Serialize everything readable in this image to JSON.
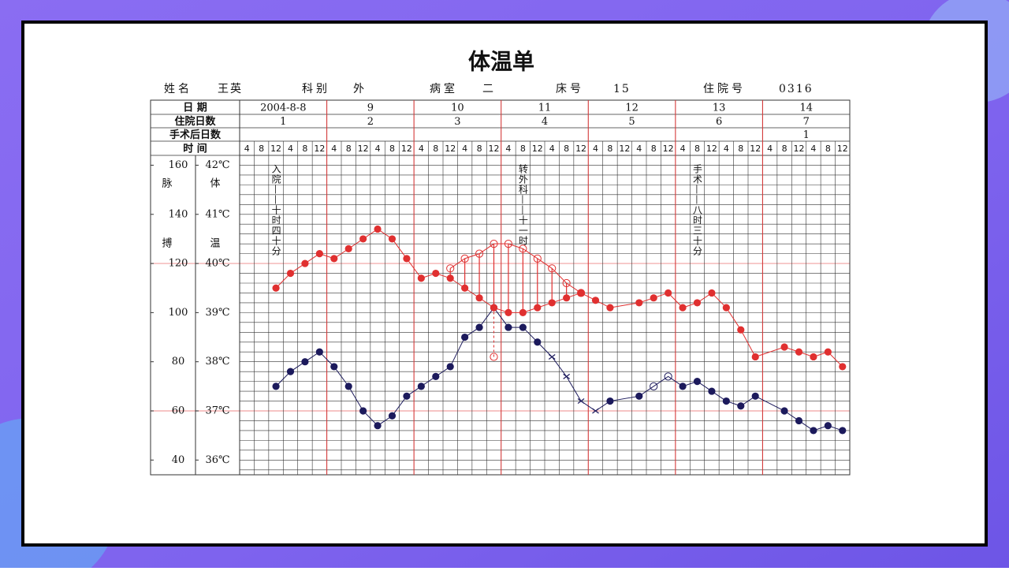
{
  "header": {
    "title": "体温单",
    "fields": [
      {
        "label": "姓名",
        "value": "王英"
      },
      {
        "label": "科别",
        "value": "外"
      },
      {
        "label": "病室",
        "value": "二"
      },
      {
        "label": "床号",
        "value": "15"
      },
      {
        "label": "住院号",
        "value": "0316"
      }
    ]
  },
  "table": {
    "row_labels": [
      "日 期",
      "住院日数",
      "手术后日数",
      "时 间"
    ],
    "dates": [
      "2004-8-8",
      "9",
      "10",
      "11",
      "12",
      "13",
      "14"
    ],
    "hospital_days": [
      1,
      2,
      3,
      4,
      5,
      6,
      7
    ],
    "postop_days": [
      null,
      null,
      null,
      null,
      null,
      null,
      1
    ],
    "times": [
      4,
      8,
      12,
      4,
      8,
      12
    ],
    "time_colors": [
      "#d42a2a",
      "#111111",
      "#111111",
      "#111111",
      "#d42a2a",
      "#d42a2a"
    ]
  },
  "chart_data": {
    "type": "line",
    "xlim": [
      -0.5,
      41.5
    ],
    "ylim": [
      35.7,
      42.2
    ],
    "yticks": [
      {
        "value": 36,
        "label": "36℃"
      },
      {
        "value": 37,
        "label": "37℃"
      },
      {
        "value": 38,
        "label": "38℃"
      },
      {
        "value": 39,
        "label": "39℃"
      },
      {
        "value": 40,
        "label": "40℃"
      },
      {
        "value": 41,
        "label": "41℃"
      },
      {
        "value": 42,
        "label": "42℃"
      }
    ],
    "y2lim": [
      34,
      164
    ],
    "y2ticks": [
      40,
      60,
      80,
      100,
      120,
      140,
      160
    ],
    "y_label": [
      "体",
      "温"
    ],
    "y2_label": [
      "脉",
      "搏"
    ],
    "minor_grid_step": 0.2,
    "highlight_lines": [
      37,
      40
    ],
    "highlight_color": "#f0a0a0",
    "series": [
      {
        "color": "#1c1a5c",
        "axis": "y",
        "x": [
          2,
          3,
          4,
          5,
          6,
          7,
          8,
          9,
          10,
          11,
          12,
          13,
          14,
          15,
          16,
          17,
          18,
          19,
          20,
          21,
          22,
          23,
          24,
          25,
          27,
          28,
          29,
          30,
          31,
          32,
          33,
          34,
          35,
          37,
          38,
          39,
          40,
          41
        ],
        "values": [
          37.5,
          37.8,
          38.0,
          38.2,
          37.9,
          37.5,
          37.0,
          36.7,
          36.9,
          37.3,
          37.5,
          37.7,
          37.9,
          38.5,
          38.7,
          39.1,
          38.7,
          38.7,
          38.4,
          38.1,
          37.7,
          37.2,
          37.0,
          37.2,
          37.3,
          37.5,
          37.7,
          37.5,
          37.6,
          37.4,
          37.2,
          37.1,
          37.3,
          37.0,
          36.8,
          36.6,
          36.7,
          36.6
        ],
        "markers": [
          "dot",
          "dot",
          "dot",
          "dot",
          "dot",
          "dot",
          "dot",
          "dot",
          "dot",
          "dot",
          "dot",
          "dot",
          "dot",
          "dot",
          "dot",
          "dot",
          "dot",
          "dot",
          "dot",
          "cross",
          "cross",
          "cross",
          "cross",
          "dot",
          "dot",
          "open",
          "open",
          "dot",
          "dot",
          "dot",
          "dot",
          "dot",
          "dot",
          "dot",
          "dot",
          "dot",
          "dot",
          "dot"
        ]
      },
      {
        "color": "#e03030",
        "axis": "y2",
        "x": [
          2,
          3,
          4,
          5,
          6,
          7,
          8,
          9,
          10,
          11,
          12,
          13,
          14,
          15,
          16,
          17,
          18,
          19,
          20,
          21,
          22,
          23,
          24,
          25,
          27,
          28,
          29,
          30,
          31,
          32,
          33,
          34,
          35,
          37,
          38,
          39,
          40,
          41
        ],
        "values": [
          110,
          116,
          120,
          124,
          122,
          126,
          130,
          134,
          130,
          122,
          114,
          116,
          114,
          110,
          106,
          102,
          100,
          100,
          102,
          104,
          106,
          108,
          105,
          102,
          104,
          106,
          108,
          102,
          104,
          108,
          102,
          93,
          82,
          86,
          84,
          82,
          84,
          78
        ],
        "marker": "dot"
      },
      {
        "color": "#e03030",
        "axis": "y2",
        "x": [
          14,
          15,
          16,
          17,
          18,
          19,
          20,
          21,
          22,
          23
        ],
        "values": [
          118,
          122,
          124,
          128,
          128,
          126,
          122,
          118,
          112,
          108
        ],
        "marker": "open",
        "deficit_with": 1
      },
      {
        "color": "#e03030",
        "axis": "y",
        "x": [
          17
        ],
        "values": [
          38.1
        ],
        "marker": "open",
        "dashed_to": 0
      }
    ],
    "annotations": [
      {
        "x": 2,
        "text": "入院——十时四十分"
      },
      {
        "x": 19,
        "text": "转外科——十一时"
      },
      {
        "x": 31,
        "text": "手术——八时三十分"
      }
    ]
  }
}
